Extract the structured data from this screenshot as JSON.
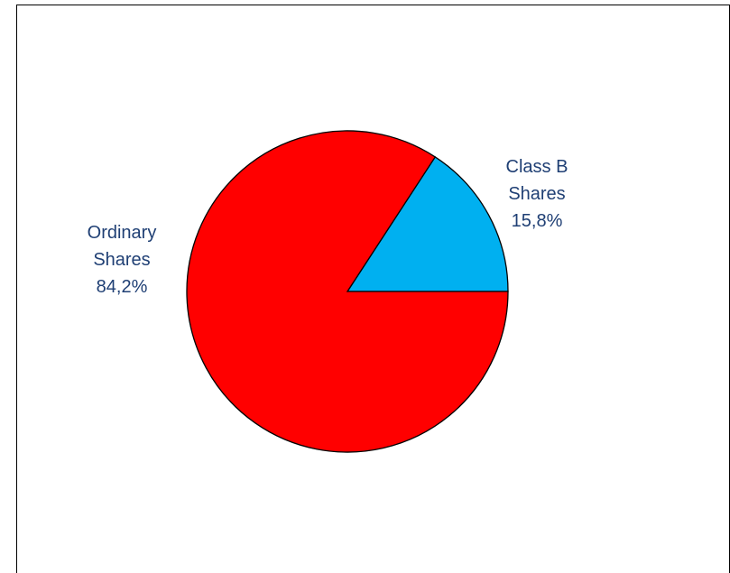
{
  "chart_data": {
    "type": "pie",
    "categories": [
      "Class B Shares",
      "Ordinary Shares"
    ],
    "values": [
      15.8,
      84.2
    ],
    "value_labels": [
      "15,8%",
      "84,2%"
    ],
    "colors": [
      "#00b0f0",
      "#ff0000"
    ]
  }
}
